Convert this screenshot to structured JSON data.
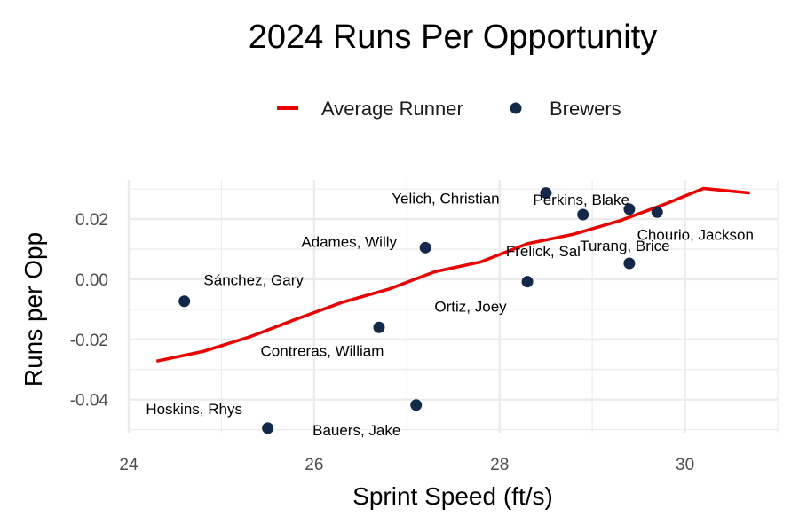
{
  "chart_data": {
    "type": "scatter",
    "title": "2024 Runs Per Opportunity",
    "xlabel": "Sprint Speed (ft/s)",
    "ylabel": "Runs per Opp",
    "xlim": [
      24,
      31
    ],
    "ylim": [
      -0.051,
      0.033
    ],
    "x_ticks": [
      24,
      26,
      28,
      30
    ],
    "x_tick_labels": [
      "24",
      "26",
      "28",
      "30"
    ],
    "y_ticks": [
      -0.04,
      -0.02,
      0.0,
      0.02
    ],
    "y_tick_labels": [
      "-0.04",
      "-0.02",
      "0.00",
      "0.02"
    ],
    "grid": true,
    "legend_position": "top",
    "legend": [
      {
        "label": "Average Runner",
        "kind": "line",
        "color": "#ee0000"
      },
      {
        "label": "Brewers",
        "kind": "point",
        "color": "#13294b"
      }
    ],
    "line_series": {
      "name": "Average Runner",
      "color": "#ee0000",
      "x": [
        24.3,
        24.8,
        25.3,
        25.8,
        26.3,
        26.8,
        27.3,
        27.8,
        28.3,
        28.8,
        29.3,
        29.8,
        30.2,
        30.7
      ],
      "y": [
        -0.0272,
        -0.024,
        -0.0192,
        -0.0133,
        -0.0077,
        -0.0033,
        0.0025,
        0.0058,
        0.0118,
        0.015,
        0.0195,
        0.0252,
        0.0302,
        0.0287
      ]
    },
    "points": [
      {
        "label": "Yelich, Christian",
        "x": 28.5,
        "y": 0.0287
      },
      {
        "label": "Perkins, Blake",
        "x": 28.9,
        "y": 0.0215
      },
      {
        "label": "Chourio, Jackson",
        "x": 29.7,
        "y": 0.0223
      },
      {
        "label": "Frelick, Sal",
        "x": 29.4,
        "y": 0.0233
      },
      {
        "label": "Adames, Willy",
        "x": 27.2,
        "y": 0.0105
      },
      {
        "label": "Turang, Brice",
        "x": 29.4,
        "y": 0.0053
      },
      {
        "label": "Ortiz, Joey",
        "x": 28.3,
        "y": -0.0008
      },
      {
        "label": "Sánchez, Gary",
        "x": 24.6,
        "y": -0.0073
      },
      {
        "label": "Contreras, William",
        "x": 26.7,
        "y": -0.016
      },
      {
        "label": "Hoskins, Rhys",
        "x": 25.5,
        "y": -0.0495
      },
      {
        "label": "Bauers, Jake",
        "x": 27.1,
        "y": -0.0418
      }
    ],
    "point_color": "#13294b"
  }
}
